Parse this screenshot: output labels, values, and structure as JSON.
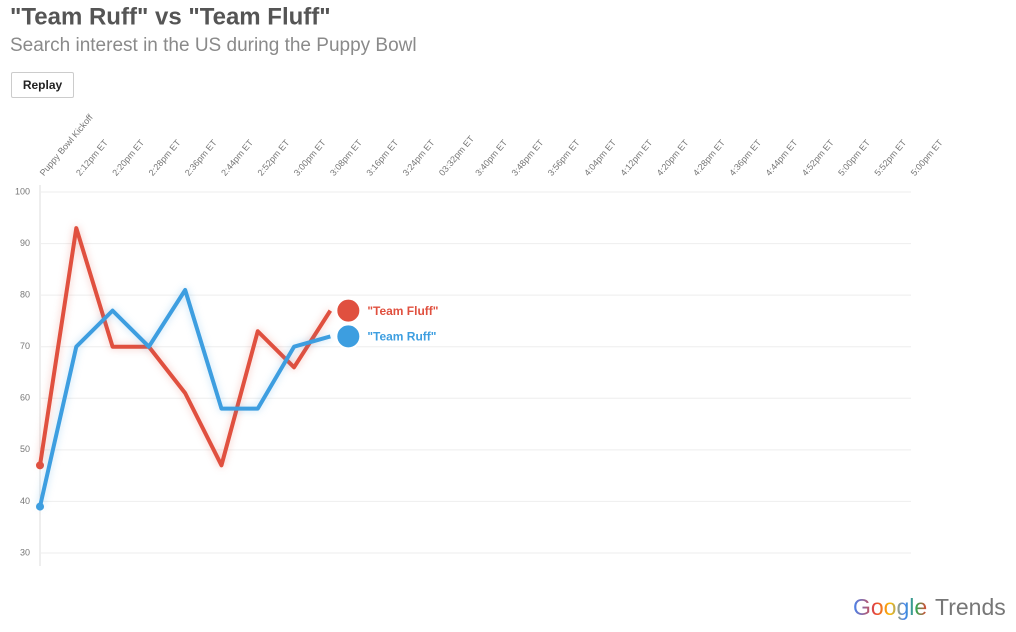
{
  "title": "\"Team Ruff\" vs \"Team Fluff\"",
  "subtitle": "Search interest in the US during the Puppy Bowl",
  "button": "Replay",
  "logo": {
    "brand": "Google",
    "product": "Trends"
  },
  "chart_data": {
    "type": "line",
    "categories": [
      "Puppy Bowl Kickoff",
      "2:12pm ET",
      "2:20pm ET",
      "2:28pm ET",
      "2:36pm ET",
      "2:44pm ET",
      "2:52pm ET",
      "3:00pm ET",
      "3:08pm ET",
      "3:16pm ET",
      "3:24pm ET",
      "03:32pm ET",
      "3:40pm ET",
      "3:48pm ET",
      "3:56pm ET",
      "4:04pm ET",
      "4:12pm ET",
      "4:20pm ET",
      "4:28pm ET",
      "4:36pm ET",
      "4:44pm ET",
      "4:52pm ET",
      "5:00pm ET",
      "5:52pm ET",
      "5:00pm ET"
    ],
    "series": [
      {
        "name": "\"Team Fluff\"",
        "color": "#e0503f",
        "values": [
          47,
          93,
          70,
          70,
          61,
          47,
          73,
          66,
          77,
          null,
          null,
          null,
          null,
          null,
          null,
          null,
          null,
          null,
          null,
          null,
          null,
          null,
          null,
          null,
          null
        ]
      },
      {
        "name": "\"Team Ruff\"",
        "color": "#3d9ee0",
        "values": [
          39,
          70,
          77,
          70,
          81,
          58,
          58,
          70,
          72,
          null,
          null,
          null,
          null,
          null,
          null,
          null,
          null,
          null,
          null,
          null,
          null,
          null,
          null,
          null,
          null
        ]
      }
    ],
    "ylim": [
      30,
      100
    ],
    "yticks": [
      30,
      40,
      50,
      60,
      70,
      80,
      90,
      100
    ],
    "grid": true
  }
}
